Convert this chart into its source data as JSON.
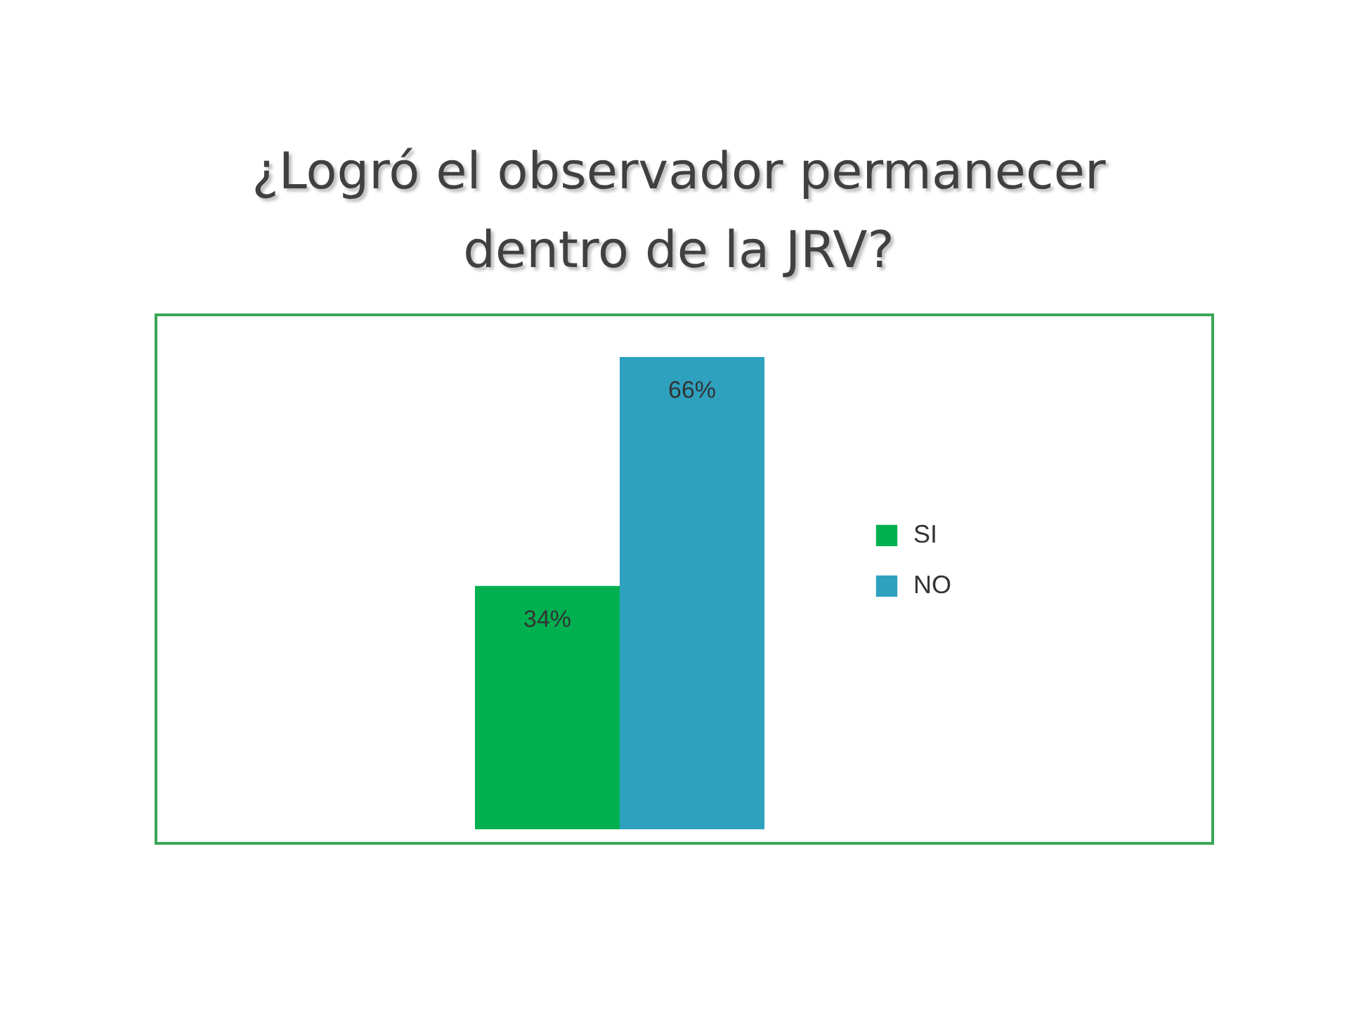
{
  "chart_data": {
    "type": "bar",
    "title": "¿Logró el observador permanecer dentro de la JRV?",
    "categories": [
      null
    ],
    "series": [
      {
        "name": "SI",
        "color": "#00b050",
        "values": [
          34
        ],
        "value_labels": [
          "34%"
        ]
      },
      {
        "name": "NO",
        "color": "#2ea1bf",
        "values": [
          66
        ],
        "value_labels": [
          "66%"
        ]
      }
    ],
    "legend": "right"
  }
}
